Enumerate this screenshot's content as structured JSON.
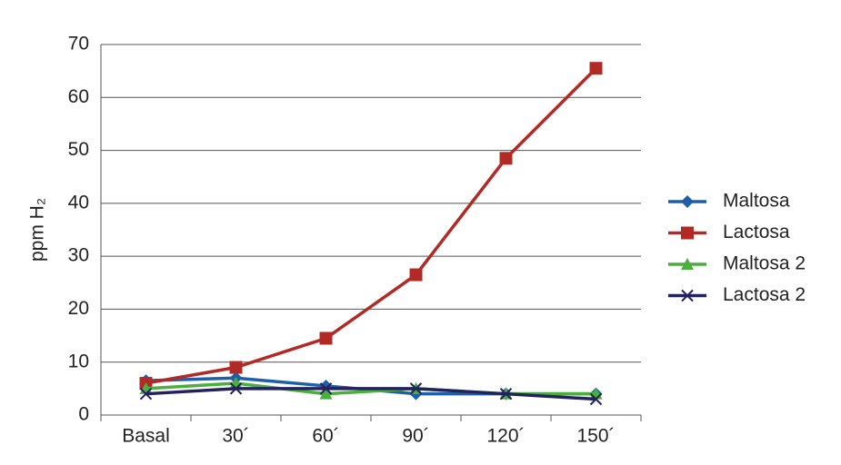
{
  "chart_data": {
    "type": "line",
    "y_label": "ppm H₂",
    "categories": [
      "Basal",
      "30´",
      "60´",
      "90´",
      "120´",
      "150´"
    ],
    "series": [
      {
        "name": "Maltosa",
        "color": "#1f5fa8",
        "marker": "diamond",
        "values": [
          6.5,
          7,
          5.5,
          4,
          4,
          4
        ]
      },
      {
        "name": "Lactosa",
        "color": "#b22a25",
        "marker": "square",
        "values": [
          6,
          9,
          14.5,
          26.5,
          48.5,
          65.5
        ]
      },
      {
        "name": "Maltosa 2",
        "color": "#4cae3c",
        "marker": "triangle",
        "values": [
          5,
          6,
          4,
          5,
          4,
          4
        ]
      },
      {
        "name": "Lactosa 2",
        "color": "#22235e",
        "marker": "x",
        "values": [
          4,
          5,
          5,
          5,
          4,
          3
        ]
      }
    ],
    "ylim": [
      0,
      70
    ],
    "yticks": [
      0,
      10,
      20,
      30,
      40,
      50,
      60,
      70
    ],
    "grid": true,
    "legend": "right"
  }
}
